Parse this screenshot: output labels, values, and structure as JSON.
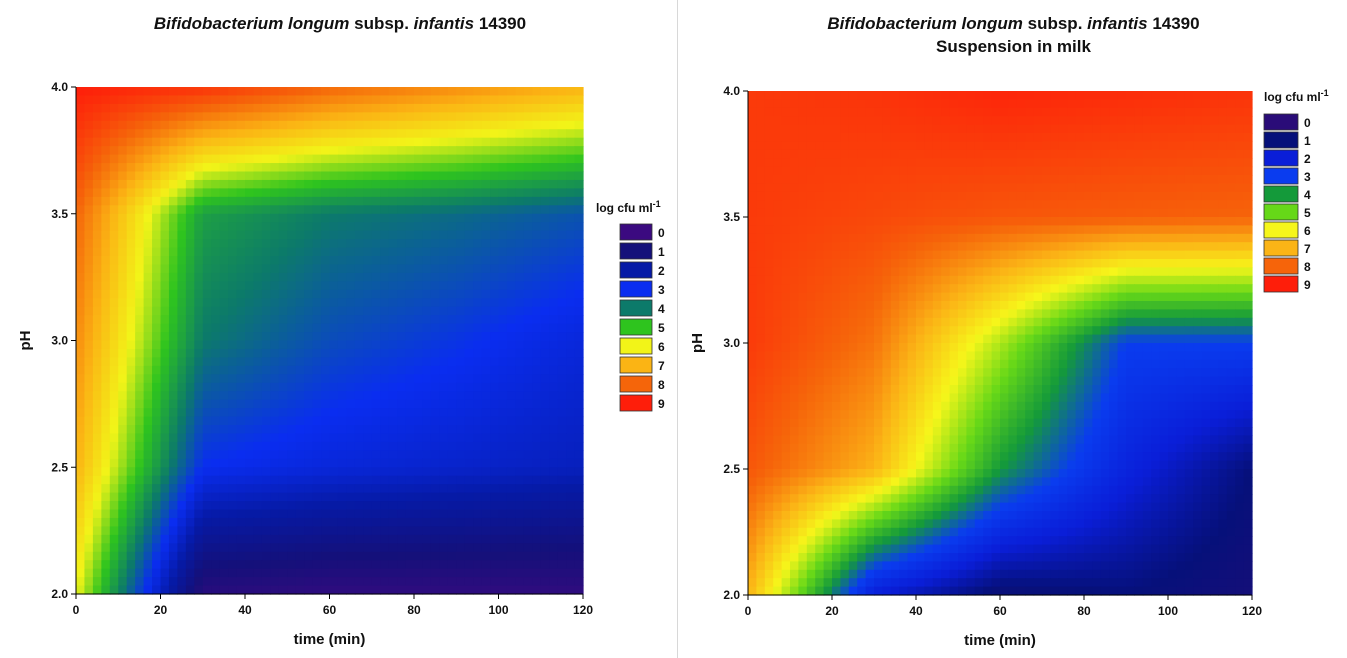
{
  "chart_data": [
    {
      "type": "heatmap",
      "title_parts": [
        {
          "text": "Bifidobacterium longum",
          "italic": true
        },
        {
          "text": " subsp. ",
          "italic": false
        },
        {
          "text": "infantis",
          "italic": true
        },
        {
          "text": " 14390",
          "italic": false
        }
      ],
      "subtitle": "",
      "xlabel": "time (min)",
      "ylabel": "pH",
      "xlim": [
        0,
        120
      ],
      "ylim": [
        2.0,
        4.0
      ],
      "xticks": [
        "0",
        "20",
        "40",
        "60",
        "80",
        "100",
        "120"
      ],
      "yticks": [
        "2.0",
        "2.5",
        "3.0",
        "3.5",
        "4.0"
      ],
      "legend": {
        "title": "log cfu ml",
        "title_sup": "-1",
        "position": "right",
        "levels": [
          {
            "label": "0",
            "color": "#3b0a80"
          },
          {
            "label": "1",
            "color": "#14107a"
          },
          {
            "label": "2",
            "color": "#061aa6"
          },
          {
            "label": "3",
            "color": "#0a2df0"
          },
          {
            "label": "4",
            "color": "#0c7a6a"
          },
          {
            "label": "5",
            "color": "#2ec41e"
          },
          {
            "label": "6",
            "color": "#f2f418"
          },
          {
            "label": "7",
            "color": "#fbb414"
          },
          {
            "label": "8",
            "color": "#f5650a"
          },
          {
            "label": "9",
            "color": "#fe1e0a"
          }
        ]
      },
      "x": [
        0,
        30,
        60,
        90,
        120
      ],
      "y": [
        2.0,
        2.5,
        3.0,
        3.5,
        4.0
      ],
      "z": [
        [
          6.0,
          0.5,
          0.3,
          0.3,
          0.3
        ],
        [
          7.0,
          3.0,
          2.7,
          2.5,
          2.3
        ],
        [
          7.5,
          4.0,
          3.4,
          3.1,
          2.7
        ],
        [
          8.0,
          4.5,
          4.0,
          3.8,
          3.5
        ],
        [
          9.0,
          8.7,
          8.0,
          7.5,
          7.0
        ]
      ]
    },
    {
      "type": "heatmap",
      "title_parts": [
        {
          "text": "Bifidobacterium longum",
          "italic": true
        },
        {
          "text": " subsp. ",
          "italic": false
        },
        {
          "text": "infantis",
          "italic": true
        },
        {
          "text": " 14390",
          "italic": false
        }
      ],
      "subtitle": "Suspension in milk",
      "xlabel": "time (min)",
      "ylabel": "pH",
      "xlim": [
        0,
        120
      ],
      "ylim": [
        2.0,
        4.0
      ],
      "xticks": [
        "0",
        "20",
        "40",
        "60",
        "80",
        "100",
        "120"
      ],
      "yticks": [
        "2.0",
        "2.5",
        "3.0",
        "3.5",
        "4.0"
      ],
      "legend": {
        "title": "log cfu ml",
        "title_sup": "-1",
        "position": "top-right",
        "levels": [
          {
            "label": "0",
            "color": "#2a0c78"
          },
          {
            "label": "1",
            "color": "#06107a"
          },
          {
            "label": "2",
            "color": "#0a1ed8"
          },
          {
            "label": "3",
            "color": "#0a3cef"
          },
          {
            "label": "4",
            "color": "#149a3a"
          },
          {
            "label": "5",
            "color": "#66d818"
          },
          {
            "label": "6",
            "color": "#f6f61a"
          },
          {
            "label": "7",
            "color": "#fbb416"
          },
          {
            "label": "8",
            "color": "#f6640a"
          },
          {
            "label": "9",
            "color": "#fe1e0a"
          }
        ]
      },
      "x": [
        0,
        30,
        60,
        90,
        120
      ],
      "y": [
        2.0,
        2.5,
        3.0,
        3.5,
        4.0
      ],
      "z": [
        [
          7.0,
          2.0,
          0.8,
          1.0,
          0.6
        ],
        [
          8.2,
          7.0,
          4.0,
          2.2,
          1.0
        ],
        [
          8.6,
          7.8,
          5.5,
          3.0,
          3.0
        ],
        [
          8.6,
          8.4,
          8.2,
          8.1,
          8.0
        ],
        [
          8.6,
          8.7,
          8.9,
          8.8,
          8.7
        ]
      ]
    }
  ]
}
